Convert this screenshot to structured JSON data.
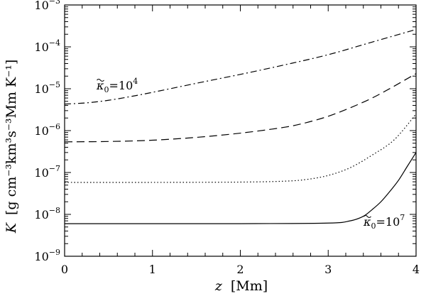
{
  "chart_data": {
    "type": "line",
    "xlabel": {
      "var": "z",
      "unit": "[Mm]"
    },
    "ylabel": {
      "var": "K",
      "unit": "[g cm⁻³km³s⁻³Mm K⁻¹]"
    },
    "x_scale": "linear",
    "y_scale": "log",
    "xlim": [
      0,
      4
    ],
    "ylim": [
      1e-09,
      0.001
    ],
    "x_ticks": [
      {
        "value": 0,
        "label": "0"
      },
      {
        "value": 1,
        "label": "1"
      },
      {
        "value": 2,
        "label": "2"
      },
      {
        "value": 3,
        "label": "3"
      },
      {
        "value": 4,
        "label": "4"
      }
    ],
    "y_ticks": [
      {
        "value": 1e-09,
        "base": "10",
        "exp": "−9"
      },
      {
        "value": 1e-08,
        "base": "10",
        "exp": "−8"
      },
      {
        "value": 1e-07,
        "base": "10",
        "exp": "−7"
      },
      {
        "value": 1e-06,
        "base": "10",
        "exp": "−6"
      },
      {
        "value": 1e-05,
        "base": "10",
        "exp": "−5"
      },
      {
        "value": 0.0001,
        "base": "10",
        "exp": "−4"
      },
      {
        "value": 0.001,
        "base": "10",
        "exp": "−3"
      }
    ],
    "grid": false,
    "series": [
      {
        "style": "dash-dot",
        "x": [
          0,
          0.25,
          0.5,
          0.75,
          1.0,
          1.5,
          2.0,
          2.5,
          3.0,
          3.5,
          4.0
        ],
        "y": [
          4.3e-06,
          4.6e-06,
          5.3e-06,
          6.5e-06,
          8.2e-06,
          1.35e-05,
          2.2e-05,
          3.7e-05,
          6.5e-05,
          0.00013,
          0.00026
        ]
      },
      {
        "style": "dashed",
        "x": [
          0,
          0.5,
          1.0,
          1.5,
          2.0,
          2.5,
          2.75,
          3.0,
          3.25,
          3.5,
          3.75,
          4.0
        ],
        "y": [
          5.4e-07,
          5.5e-07,
          5.9e-07,
          6.9e-07,
          8.7e-07,
          1.2e-06,
          1.55e-06,
          2.2e-06,
          3.5e-06,
          6e-06,
          1.15e-05,
          2.3e-05
        ]
      },
      {
        "style": "dotted",
        "x": [
          0,
          1.0,
          2.0,
          2.5,
          2.75,
          3.0,
          3.25,
          3.5,
          3.75,
          4.0
        ],
        "y": [
          5.8e-08,
          5.8e-08,
          5.9e-08,
          6.2e-08,
          6.8e-08,
          8.5e-08,
          1.3e-07,
          2.6e-07,
          6e-07,
          2.5e-06
        ]
      },
      {
        "style": "solid",
        "x": [
          0,
          1.0,
          2.0,
          3.0,
          3.25,
          3.4,
          3.5,
          3.6,
          3.7,
          3.8,
          3.9,
          4.0
        ],
        "y": [
          6e-09,
          6e-09,
          6e-09,
          6.2e-09,
          7e-09,
          9e-09,
          1.3e-08,
          2e-08,
          3.5e-08,
          6.5e-08,
          1.4e-07,
          3e-07
        ]
      }
    ],
    "annotations": [
      {
        "symbol": "κ",
        "sub": "0",
        "eq": "=10",
        "exp": "4",
        "near_series": "dash-dot"
      },
      {
        "symbol": "κ",
        "sub": "0",
        "eq": "=10",
        "exp": "7",
        "near_series": "solid"
      }
    ]
  }
}
